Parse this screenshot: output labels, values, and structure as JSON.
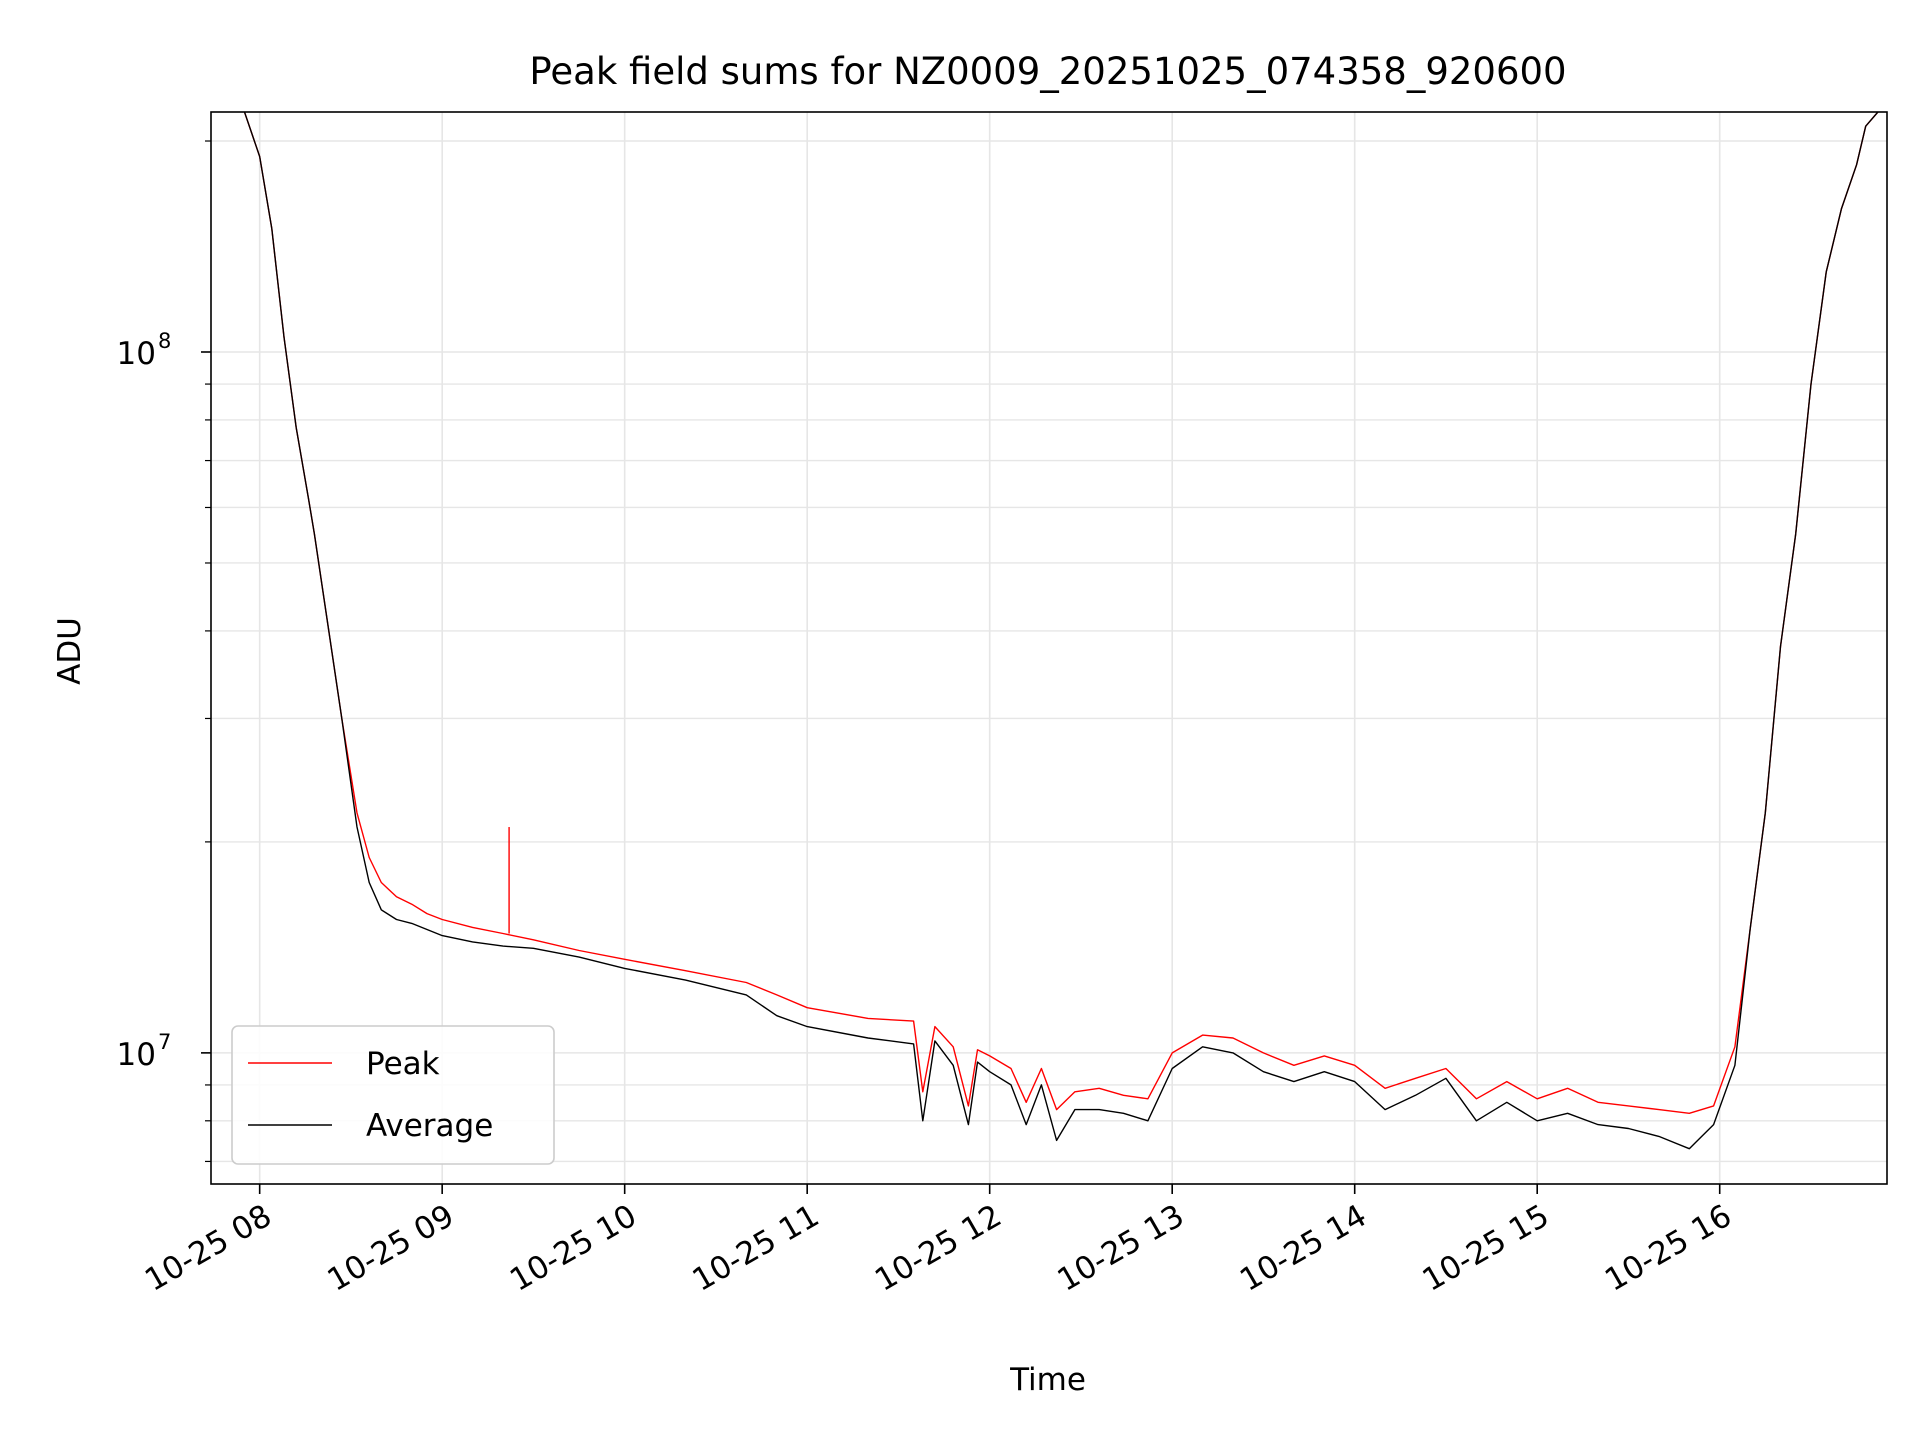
{
  "chart_data": {
    "type": "line",
    "title": "Peak field sums for NZ0009_20251025_074358_920600",
    "xlabel": "Time",
    "ylabel": "ADU",
    "y_scale": "log",
    "ylim": [
      6500000,
      220000000
    ],
    "xlim": [
      "2025-10-25 07:44",
      "2025-10-25 16:55"
    ],
    "x_ticks": [
      {
        "value": "2025-10-25 08:00",
        "label": "10-25 08"
      },
      {
        "value": "2025-10-25 09:00",
        "label": "10-25 09"
      },
      {
        "value": "2025-10-25 10:00",
        "label": "10-25 10"
      },
      {
        "value": "2025-10-25 11:00",
        "label": "10-25 11"
      },
      {
        "value": "2025-10-25 12:00",
        "label": "10-25 12"
      },
      {
        "value": "2025-10-25 13:00",
        "label": "10-25 13"
      },
      {
        "value": "2025-10-25 14:00",
        "label": "10-25 14"
      },
      {
        "value": "2025-10-25 15:00",
        "label": "10-25 15"
      },
      {
        "value": "2025-10-25 16:00",
        "label": "10-25 16"
      }
    ],
    "y_ticks": [
      {
        "value": 10000000,
        "base": "10",
        "exp": "7"
      },
      {
        "value": 100000000,
        "base": "10",
        "exp": "8"
      }
    ],
    "grid": true,
    "legend_position": "lower-left",
    "colors": {
      "peak": "#ff0000",
      "average": "#000000",
      "grid": "#e6e6e6"
    },
    "x": [
      "2025-10-25 07:55",
      "2025-10-25 08:00",
      "2025-10-25 08:04",
      "2025-10-25 08:08",
      "2025-10-25 08:12",
      "2025-10-25 08:16",
      "2025-10-25 08:18",
      "2025-10-25 08:22",
      "2025-10-25 08:27",
      "2025-10-25 08:32",
      "2025-10-25 08:36",
      "2025-10-25 08:40",
      "2025-10-25 08:45",
      "2025-10-25 08:50",
      "2025-10-25 08:55",
      "2025-10-25 09:00",
      "2025-10-25 09:10",
      "2025-10-25 09:20",
      "2025-10-25 09:30",
      "2025-10-25 09:45",
      "2025-10-25 10:00",
      "2025-10-25 10:20",
      "2025-10-25 10:40",
      "2025-10-25 10:50",
      "2025-10-25 11:00",
      "2025-10-25 11:20",
      "2025-10-25 11:35",
      "2025-10-25 11:38",
      "2025-10-25 11:42",
      "2025-10-25 11:48",
      "2025-10-25 11:53",
      "2025-10-25 11:56",
      "2025-10-25 12:00",
      "2025-10-25 12:07",
      "2025-10-25 12:12",
      "2025-10-25 12:17",
      "2025-10-25 12:22",
      "2025-10-25 12:28",
      "2025-10-25 12:36",
      "2025-10-25 12:44",
      "2025-10-25 12:52",
      "2025-10-25 13:00",
      "2025-10-25 13:10",
      "2025-10-25 13:20",
      "2025-10-25 13:30",
      "2025-10-25 13:40",
      "2025-10-25 13:50",
      "2025-10-25 14:00",
      "2025-10-25 14:10",
      "2025-10-25 14:20",
      "2025-10-25 14:30",
      "2025-10-25 14:40",
      "2025-10-25 14:50",
      "2025-10-25 15:00",
      "2025-10-25 15:10",
      "2025-10-25 15:20",
      "2025-10-25 15:30",
      "2025-10-25 15:40",
      "2025-10-25 15:50",
      "2025-10-25 15:58",
      "2025-10-25 16:05",
      "2025-10-25 16:10",
      "2025-10-25 16:15",
      "2025-10-25 16:20",
      "2025-10-25 16:25",
      "2025-10-25 16:30",
      "2025-10-25 16:35",
      "2025-10-25 16:40",
      "2025-10-25 16:45",
      "2025-10-25 16:48",
      "2025-10-25 16:52"
    ],
    "series": [
      {
        "name": "Peak",
        "values": [
          220000000,
          190000000,
          150000000,
          105000000,
          78000000,
          62000000,
          55000000,
          42000000,
          30000000,
          22000000,
          19000000,
          17500000,
          16700000,
          16300000,
          15800000,
          15500000,
          15100000,
          14800000,
          14500000,
          14000000,
          13600000,
          13100000,
          12600000,
          12100000,
          11600000,
          11200000,
          11100000,
          8800000,
          10900000,
          10200000,
          8400000,
          10100000,
          9900000,
          9500000,
          8500000,
          9500000,
          8300000,
          8800000,
          8900000,
          8700000,
          8600000,
          10000000,
          10600000,
          10500000,
          10000000,
          9600000,
          9900000,
          9600000,
          8900000,
          9200000,
          9500000,
          8600000,
          9100000,
          8600000,
          8900000,
          8500000,
          8400000,
          8300000,
          8200000,
          8400000,
          10200000,
          15000000,
          22000000,
          38000000,
          55000000,
          90000000,
          130000000,
          160000000,
          185000000,
          210000000,
          220000000
        ]
      },
      {
        "name": "Average",
        "values": [
          220000000,
          190000000,
          150000000,
          105000000,
          78000000,
          62000000,
          55000000,
          42000000,
          30000000,
          21000000,
          17500000,
          16000000,
          15500000,
          15300000,
          15000000,
          14700000,
          14400000,
          14200000,
          14100000,
          13700000,
          13200000,
          12700000,
          12100000,
          11300000,
          10900000,
          10500000,
          10300000,
          8000000,
          10400000,
          9600000,
          7900000,
          9700000,
          9400000,
          9000000,
          7900000,
          9000000,
          7500000,
          8300000,
          8300000,
          8200000,
          8000000,
          9500000,
          10200000,
          10000000,
          9400000,
          9100000,
          9400000,
          9100000,
          8300000,
          8700000,
          9200000,
          8000000,
          8500000,
          8000000,
          8200000,
          7900000,
          7800000,
          7600000,
          7300000,
          7900000,
          9600000,
          15000000,
          22000000,
          38000000,
          55000000,
          90000000,
          130000000,
          160000000,
          185000000,
          210000000,
          220000000
        ]
      }
    ],
    "annotations": [
      {
        "series": "Peak",
        "x": "2025-10-25 09:22",
        "y": 21000000,
        "note": "spike"
      }
    ]
  }
}
